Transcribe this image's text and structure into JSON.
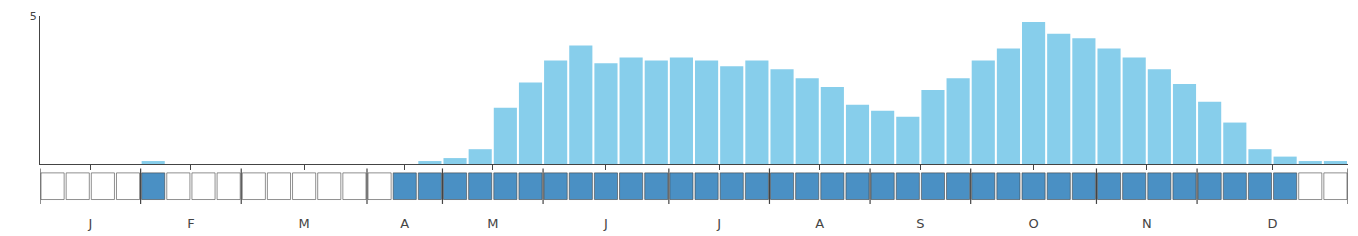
{
  "chart_data": {
    "type": "bar",
    "categories": [
      "J",
      null,
      null,
      null,
      "F",
      null,
      null,
      null,
      "M",
      null,
      null,
      null,
      null,
      "A",
      null,
      null,
      "M",
      null,
      null,
      null,
      "J",
      null,
      null,
      null,
      null,
      "J",
      null,
      null,
      null,
      "A",
      null,
      null,
      null,
      "S",
      null,
      null,
      null,
      "O",
      null,
      null,
      null,
      null,
      "N",
      null,
      null,
      null,
      "D",
      null,
      null,
      null,
      null,
      null
    ],
    "series": [
      {
        "type": "bar",
        "color": "#87CEEB",
        "values": [
          0,
          0,
          0,
          0,
          0.1,
          0,
          0,
          0,
          0,
          0,
          0,
          0,
          0,
          0,
          0,
          0.1,
          0.2,
          0.5,
          1.9,
          2.75,
          3.5,
          4,
          3.4,
          3.6,
          3.5,
          3.6,
          3.5,
          3.3,
          3.5,
          3.2,
          2.9,
          2.6,
          2,
          1.8,
          1.6,
          2.5,
          2.9,
          3.5,
          3.9,
          4.8,
          4.4,
          4.25,
          3.9,
          3.6,
          3.2,
          2.7,
          2.1,
          1.4,
          0.5,
          0.25,
          0.1,
          0.1
        ]
      },
      {
        "type": "band",
        "colors": [
          "#ffffff",
          "#ffffff",
          "#ffffff",
          "#ffffff",
          "#4a90c4",
          "#ffffff",
          "#ffffff",
          "#ffffff",
          "#ffffff",
          "#ffffff",
          "#ffffff",
          "#ffffff",
          "#ffffff",
          "#ffffff",
          "#4a90c4",
          "#4a90c4",
          "#4a90c4",
          "#4a90c4",
          "#4a90c4",
          "#4a90c4",
          "#4a90c4",
          "#4a90c4",
          "#4a90c4",
          "#4a90c4",
          "#4a90c4",
          "#4a90c4",
          "#4a90c4",
          "#4a90c4",
          "#4a90c4",
          "#4a90c4",
          "#4a90c4",
          "#4a90c4",
          "#4a90c4",
          "#4a90c4",
          "#4a90c4",
          "#4a90c4",
          "#4a90c4",
          "#4a90c4",
          "#4a90c4",
          "#4a90c4",
          "#4a90c4",
          "#4a90c4",
          "#4a90c4",
          "#4a90c4",
          "#4a90c4",
          "#4a90c4",
          "#4a90c4",
          "#4a90c4",
          "#4a90c4",
          "#4a90c4",
          "#ffffff",
          "#ffffff"
        ]
      }
    ],
    "ylim": [
      0,
      5
    ],
    "yticks": [
      5
    ],
    "grid": false
  }
}
